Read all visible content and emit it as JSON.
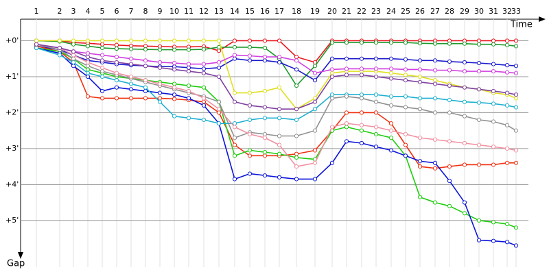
{
  "chart_data": {
    "type": "line",
    "x_label": "Time",
    "y_label": "Gap",
    "categories": [
      "1",
      "2",
      "3",
      "4",
      "5",
      "6",
      "7",
      "8",
      "9",
      "10",
      "11",
      "12",
      "13",
      "14",
      "15",
      "16",
      "17",
      "18",
      "19",
      "20",
      "21",
      "22",
      "23",
      "24",
      "25",
      "26",
      "27",
      "28",
      "29",
      "30",
      "31",
      "32",
      "33"
    ],
    "ylim": [
      -0.6,
      6.3
    ],
    "yticks": [
      {
        "value": 0,
        "label": "+0'"
      },
      {
        "value": 1,
        "label": "+1'"
      },
      {
        "value": 2,
        "label": "+2'"
      },
      {
        "value": 3,
        "label": "+3'"
      },
      {
        "value": 4,
        "label": "+4'"
      },
      {
        "value": 5,
        "label": "+5'"
      }
    ],
    "grid": true,
    "series": [
      {
        "color": "#e8141e",
        "values": [
          0,
          0,
          0.05,
          0.07,
          0.1,
          0.12,
          0.14,
          0.15,
          0.16,
          0.17,
          0.17,
          0.16,
          0.28,
          0,
          0,
          0,
          0,
          0.45,
          0.6,
          0,
          0,
          0,
          0,
          0,
          0,
          0,
          0,
          0,
          0,
          0,
          0,
          0,
          0
        ]
      },
      {
        "color": "#1e9a2a",
        "values": [
          0,
          0.02,
          0.1,
          0.15,
          0.2,
          0.22,
          0.23,
          0.24,
          0.25,
          0.25,
          0.25,
          0.24,
          0.18,
          0.18,
          0.18,
          0.2,
          0.5,
          1.25,
          0.7,
          0.05,
          0.05,
          0.05,
          0.05,
          0.05,
          0.05,
          0.07,
          0.08,
          0.08,
          0.08,
          0.1,
          0.1,
          0.12,
          0.15
        ]
      },
      {
        "color": "#1a1acc",
        "values": [
          0.15,
          0.25,
          0.4,
          0.55,
          0.6,
          0.65,
          0.68,
          0.7,
          0.72,
          0.72,
          0.75,
          0.78,
          0.75,
          0.5,
          0.55,
          0.55,
          0.6,
          0.8,
          1.1,
          0.5,
          0.5,
          0.5,
          0.5,
          0.5,
          0.52,
          0.55,
          0.55,
          0.58,
          0.6,
          0.62,
          0.65,
          0.68,
          0.7
        ]
      },
      {
        "color": "#e0e020",
        "values": [
          0,
          0,
          0,
          0,
          0,
          0,
          0,
          0,
          0,
          0,
          0,
          0,
          0,
          1.45,
          1.45,
          1.4,
          1.3,
          1.9,
          1.6,
          0.9,
          0.85,
          0.85,
          0.85,
          0.9,
          0.95,
          1.0,
          1.1,
          1.2,
          1.3,
          1.35,
          1.45,
          1.5,
          1.6
        ]
      },
      {
        "color": "#d040e0",
        "values": [
          0.1,
          0.2,
          0.3,
          0.35,
          0.4,
          0.45,
          0.5,
          0.55,
          0.6,
          0.62,
          0.65,
          0.65,
          0.6,
          0.4,
          0.42,
          0.45,
          0.45,
          0.55,
          0.9,
          0.8,
          0.78,
          0.78,
          0.78,
          0.78,
          0.8,
          0.8,
          0.82,
          0.82,
          0.85,
          0.85,
          0.85,
          0.88,
          0.9
        ]
      },
      {
        "color": "#f03010",
        "values": [
          0.15,
          0.3,
          0.6,
          1.55,
          1.6,
          1.6,
          1.6,
          1.6,
          1.6,
          1.62,
          1.65,
          1.7,
          2.0,
          2.9,
          3.2,
          3.2,
          3.2,
          3.15,
          3.05,
          2.5,
          2.0,
          2.0,
          2.0,
          2.3,
          2.9,
          3.5,
          3.55,
          3.5,
          3.45,
          3.45,
          3.45,
          3.4,
          3.4
        ]
      },
      {
        "color": "#20cc10",
        "values": [
          0.2,
          0.3,
          0.5,
          0.8,
          0.9,
          1.0,
          1.05,
          1.1,
          1.15,
          1.2,
          1.25,
          1.3,
          1.7,
          3.2,
          3.05,
          3.1,
          3.15,
          3.25,
          3.3,
          2.5,
          2.4,
          2.5,
          2.6,
          2.7,
          3.2,
          4.35,
          4.5,
          4.6,
          4.8,
          5.0,
          5.05,
          5.1,
          5.2
        ]
      },
      {
        "color": "#0a14d8",
        "values": [
          0.2,
          0.35,
          0.7,
          1.0,
          1.4,
          1.3,
          1.35,
          1.4,
          1.45,
          1.5,
          1.6,
          1.8,
          2.3,
          3.85,
          3.7,
          3.75,
          3.8,
          3.85,
          3.85,
          3.4,
          2.8,
          2.85,
          2.95,
          3.05,
          3.2,
          3.35,
          3.4,
          3.9,
          4.5,
          5.55,
          5.57,
          5.6,
          5.7
        ]
      },
      {
        "color": "#20b0d0",
        "values": [
          0.2,
          0.4,
          0.6,
          0.9,
          1.0,
          1.1,
          1.2,
          1.3,
          1.7,
          2.1,
          2.15,
          2.2,
          2.3,
          2.3,
          2.2,
          2.15,
          2.15,
          2.2,
          1.9,
          1.5,
          1.5,
          1.5,
          1.5,
          1.55,
          1.55,
          1.6,
          1.6,
          1.65,
          1.7,
          1.72,
          1.75,
          1.8,
          1.85
        ]
      },
      {
        "color": "#909090",
        "values": [
          0.1,
          0.25,
          0.5,
          0.7,
          0.85,
          0.95,
          1.05,
          1.15,
          1.25,
          1.35,
          1.45,
          1.55,
          1.7,
          2.7,
          2.55,
          2.6,
          2.65,
          2.65,
          2.5,
          1.6,
          1.55,
          1.6,
          1.7,
          1.8,
          1.85,
          1.9,
          2.0,
          2.0,
          2.1,
          2.2,
          2.25,
          2.35,
          2.5
        ]
      },
      {
        "color": "#f090a0",
        "values": [
          0.1,
          0.2,
          0.4,
          0.6,
          0.75,
          0.9,
          1.0,
          1.1,
          1.2,
          1.3,
          1.4,
          1.6,
          1.9,
          2.4,
          2.6,
          2.7,
          2.9,
          3.5,
          3.4,
          2.4,
          2.3,
          2.35,
          2.4,
          2.5,
          2.6,
          2.7,
          2.75,
          2.8,
          2.85,
          2.9,
          2.95,
          3.0,
          3.05
        ]
      },
      {
        "color": "#8040a0",
        "values": [
          0.1,
          0.2,
          0.3,
          0.45,
          0.55,
          0.6,
          0.65,
          0.7,
          0.75,
          0.8,
          0.85,
          0.9,
          1.0,
          1.7,
          1.8,
          1.85,
          1.9,
          1.9,
          1.7,
          1.0,
          0.95,
          0.95,
          1.0,
          1.05,
          1.1,
          1.15,
          1.2,
          1.25,
          1.3,
          1.35,
          1.4,
          1.45,
          1.5
        ]
      }
    ]
  }
}
